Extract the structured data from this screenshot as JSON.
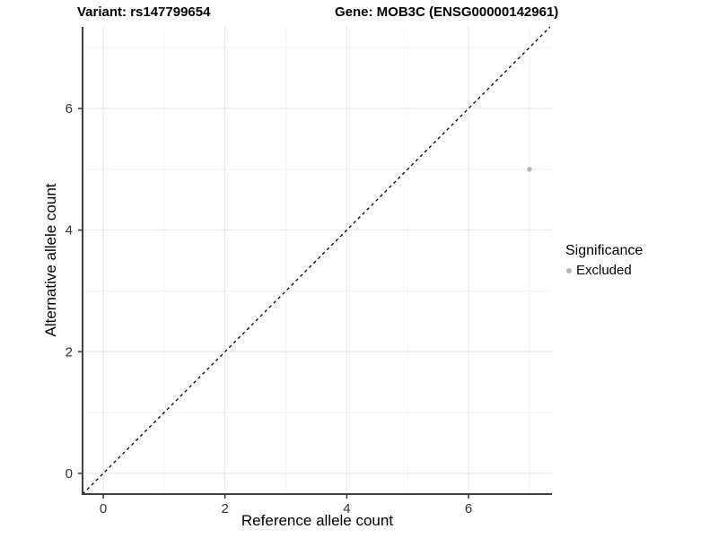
{
  "header": {
    "variant_title": "Variant: rs147799654",
    "gene_title": "Gene: MOB3C (ENSG00000142961)"
  },
  "chart_data": {
    "type": "scatter",
    "xlabel": "Reference allele count",
    "ylabel": "Alternative allele count",
    "xlim": [
      -0.34,
      7.37
    ],
    "ylim": [
      -0.34,
      7.34
    ],
    "x_ticks": [
      0,
      2,
      4,
      6
    ],
    "y_ticks": [
      0,
      2,
      4,
      6
    ],
    "x_minor_grid": [
      1,
      3,
      5,
      7
    ],
    "y_minor_grid": [
      1,
      3,
      5,
      7
    ],
    "grid": true,
    "identity_line": {
      "style": "dashed",
      "color": "#000000",
      "from": [
        -0.34,
        -0.34
      ],
      "to": [
        7.34,
        7.34
      ]
    },
    "series": [
      {
        "name": "Excluded",
        "color": "#b4b4b4",
        "points": [
          {
            "x": 7,
            "y": 5
          }
        ]
      }
    ],
    "legend": {
      "title": "Significance",
      "position": "right",
      "items": [
        {
          "label": "Excluded",
          "color": "#b4b4b4"
        }
      ]
    }
  },
  "colors": {
    "grid_major": "#e4e4e4",
    "grid_minor": "#f2f2f2",
    "axis_line": "#404040",
    "tick_mark": "#333333",
    "tick_label": "#333333",
    "point": "#b4b4b4"
  }
}
